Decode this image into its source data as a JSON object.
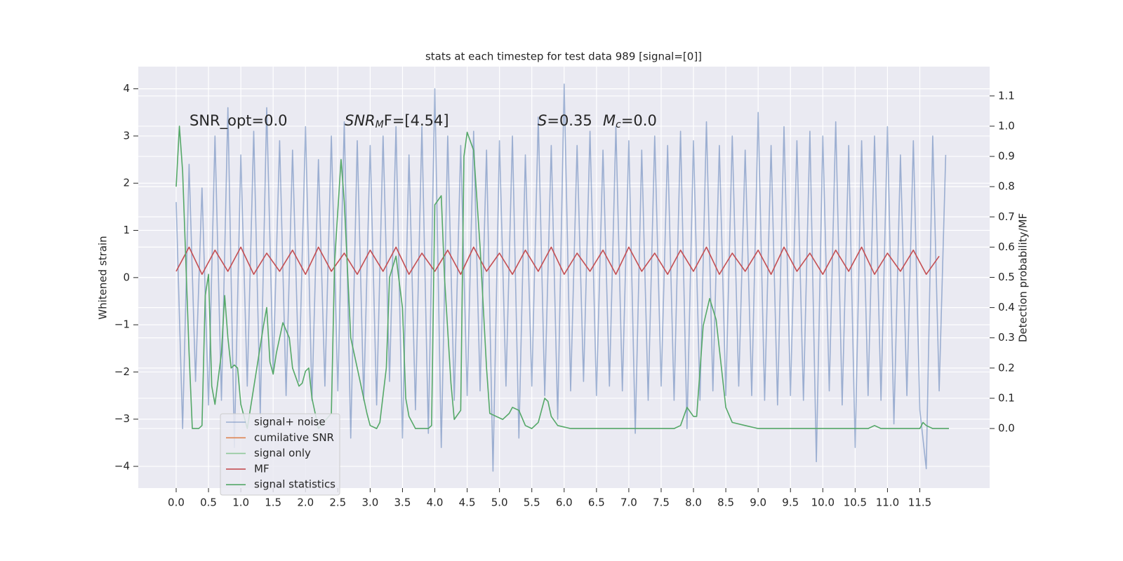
{
  "chart_data": {
    "type": "line",
    "title": "stats at each timestep for test data 989 [signal=[0]]",
    "ylabel": "Whitened strain",
    "y2label": "Detection probability/MF",
    "grid": true,
    "legend": "lower left",
    "background": "#eaeaf2",
    "annotations": [
      {
        "text": "SNR_opt=0.0"
      },
      {
        "italic": "SNR",
        "sub": "M",
        "text": "F=[4.54]"
      },
      {
        "italic": "S",
        "text": "=0.35"
      },
      {
        "italic": "M",
        "sub": "c",
        "text": "=0.0"
      }
    ],
    "xlim": [
      -0.586,
      12.58
    ],
    "ylim": [
      -4.46,
      4.47
    ],
    "y2lim": [
      -0.197,
      1.197
    ],
    "xticks": [
      {
        "value": 0,
        "label": "0.0"
      },
      {
        "value": 0.5,
        "label": "0.5"
      },
      {
        "value": 1,
        "label": "1.0"
      },
      {
        "value": 1.5,
        "label": "1.5"
      },
      {
        "value": 2,
        "label": "2.0"
      },
      {
        "value": 2.5,
        "label": "2.5"
      },
      {
        "value": 3,
        "label": "3.0"
      },
      {
        "value": 3.5,
        "label": "3.5"
      },
      {
        "value": 4,
        "label": "4.0"
      },
      {
        "value": 4.5,
        "label": "4.5"
      },
      {
        "value": 5,
        "label": "5.0"
      },
      {
        "value": 5.5,
        "label": "5.5"
      },
      {
        "value": 6,
        "label": "6.0"
      },
      {
        "value": 6.5,
        "label": "6.5"
      },
      {
        "value": 7,
        "label": "7.0"
      },
      {
        "value": 7.5,
        "label": "7.5"
      },
      {
        "value": 8,
        "label": "8.0"
      },
      {
        "value": 8.5,
        "label": "8.5"
      },
      {
        "value": 9,
        "label": "9.0"
      },
      {
        "value": 9.5,
        "label": "9.5"
      },
      {
        "value": 10,
        "label": "10.0"
      },
      {
        "value": 10.5,
        "label": "10.5"
      },
      {
        "value": 11,
        "label": "11.0"
      },
      {
        "value": 11.5,
        "label": "11.5"
      }
    ],
    "yticks": [
      {
        "value": -4,
        "label": "−4"
      },
      {
        "value": -3,
        "label": "−3"
      },
      {
        "value": -2,
        "label": "−2"
      },
      {
        "value": -1,
        "label": "−1"
      },
      0,
      1,
      2,
      3,
      4
    ],
    "y2ticks": [
      {
        "value": 0,
        "label": "0.0"
      },
      {
        "value": 0.1,
        "label": "0.1"
      },
      {
        "value": 0.2,
        "label": "0.2"
      },
      {
        "value": 0.3,
        "label": "0.3"
      },
      {
        "value": 0.4,
        "label": "0.4"
      },
      {
        "value": 0.5,
        "label": "0.5"
      },
      {
        "value": 0.6,
        "label": "0.6"
      },
      {
        "value": 0.7,
        "label": "0.7"
      },
      {
        "value": 0.8,
        "label": "0.8"
      },
      {
        "value": 0.9,
        "label": "0.9"
      },
      {
        "value": 1,
        "label": "1.0"
      },
      {
        "value": 1.1,
        "label": "1.1"
      }
    ],
    "series": [
      {
        "name": "signal+ noise",
        "color": "#4c72b0",
        "opacity": 0.5,
        "x": [
          0,
          0.1,
          0.2,
          0.3,
          0.4,
          0.5,
          0.6,
          0.7,
          0.8,
          0.9,
          1,
          1.1,
          1.2,
          1.3,
          1.4,
          1.5,
          1.6,
          1.7,
          1.8,
          1.9,
          2,
          2.1,
          2.2,
          2.3,
          2.4,
          2.5,
          2.6,
          2.7,
          2.8,
          2.9,
          3,
          3.1,
          3.2,
          3.3,
          3.4,
          3.5,
          3.6,
          3.7,
          3.8,
          3.9,
          4,
          4.1,
          4.2,
          4.3,
          4.4,
          4.5,
          4.6,
          4.7,
          4.8,
          4.9,
          5,
          5.1,
          5.2,
          5.3,
          5.4,
          5.5,
          5.6,
          5.7,
          5.8,
          5.9,
          6,
          6.1,
          6.2,
          6.3,
          6.4,
          6.5,
          6.6,
          6.7,
          6.8,
          6.9,
          7,
          7.1,
          7.2,
          7.3,
          7.4,
          7.5,
          7.6,
          7.7,
          7.8,
          7.9,
          8,
          8.1,
          8.2,
          8.3,
          8.4,
          8.5,
          8.6,
          8.7,
          8.8,
          8.9,
          9,
          9.1,
          9.2,
          9.3,
          9.4,
          9.5,
          9.6,
          9.7,
          9.8,
          9.9,
          10,
          10.1,
          10.2,
          10.3,
          10.4,
          10.5,
          10.6,
          10.7,
          10.8,
          10.9,
          11,
          11.1,
          11.2,
          11.3,
          11.4,
          11.5,
          11.6,
          11.7,
          11.8,
          11.9
        ],
        "values": [
          1.6,
          -3.2,
          2.4,
          -2.2,
          1.9,
          -2.7,
          3.0,
          -2.6,
          3.6,
          -3.6,
          2.6,
          -2.3,
          3.1,
          -2.9,
          3.6,
          -2.0,
          2.9,
          -2.5,
          2.7,
          -2.2,
          3.2,
          -2.6,
          2.5,
          -2.3,
          3.0,
          -2.4,
          3.3,
          -3.4,
          2.9,
          -2.6,
          2.8,
          -2.7,
          3.0,
          -2.2,
          3.2,
          -3.4,
          2.6,
          -2.8,
          3.2,
          -3.3,
          4.0,
          -3.6,
          3.0,
          -2.6,
          2.8,
          -2.5,
          3.1,
          -2.4,
          2.7,
          -4.1,
          2.9,
          -2.3,
          3.0,
          -3.4,
          2.6,
          -2.3,
          3.4,
          -2.5,
          2.8,
          -3.0,
          4.1,
          -2.4,
          2.8,
          -2.2,
          3.1,
          -2.5,
          2.7,
          -2.3,
          3.2,
          -2.4,
          2.9,
          -3.3,
          2.7,
          -2.6,
          3.0,
          -2.3,
          2.8,
          -2.6,
          3.1,
          -3.2,
          2.9,
          -2.6,
          3.3,
          -2.4,
          2.8,
          -2.5,
          3.0,
          -2.3,
          2.7,
          -2.5,
          3.5,
          -2.6,
          2.8,
          -2.7,
          3.2,
          -2.5,
          2.9,
          -2.6,
          3.1,
          -3.9,
          3.0,
          -2.4,
          3.3,
          -2.7,
          2.8,
          -3.6,
          2.9,
          -2.5,
          3.0,
          -2.6,
          3.2,
          -3.1,
          2.6,
          -2.5,
          2.9,
          -2.8,
          -4.05,
          3.0,
          -2.4,
          2.6
        ]
      },
      {
        "name": "cumilative SNR",
        "color": "#dd8452",
        "x": [],
        "values": []
      },
      {
        "name": "signal only",
        "color": "#8fc79a",
        "x": [],
        "values": []
      },
      {
        "name": "MF",
        "color": "#c44e52",
        "axis": "y2",
        "x": [
          0,
          0.2,
          0.4,
          0.6,
          0.8,
          1,
          1.2,
          1.4,
          1.6,
          1.8,
          2,
          2.2,
          2.4,
          2.6,
          2.8,
          3,
          3.2,
          3.4,
          3.6,
          3.8,
          4,
          4.2,
          4.4,
          4.6,
          4.8,
          5,
          5.2,
          5.4,
          5.6,
          5.8,
          6,
          6.2,
          6.4,
          6.6,
          6.8,
          7,
          7.2,
          7.4,
          7.6,
          7.8,
          8,
          8.2,
          8.4,
          8.6,
          8.8,
          9,
          9.2,
          9.4,
          9.6,
          9.8,
          10,
          10.2,
          10.4,
          10.6,
          10.8,
          11,
          11.2,
          11.4,
          11.6,
          11.8
        ],
        "values": [
          0.52,
          0.6,
          0.51,
          0.59,
          0.52,
          0.6,
          0.51,
          0.58,
          0.52,
          0.59,
          0.51,
          0.6,
          0.52,
          0.58,
          0.51,
          0.59,
          0.52,
          0.6,
          0.51,
          0.58,
          0.52,
          0.59,
          0.51,
          0.6,
          0.52,
          0.58,
          0.51,
          0.59,
          0.52,
          0.6,
          0.51,
          0.58,
          0.52,
          0.59,
          0.51,
          0.6,
          0.52,
          0.58,
          0.51,
          0.59,
          0.52,
          0.6,
          0.51,
          0.58,
          0.52,
          0.59,
          0.51,
          0.6,
          0.52,
          0.58,
          0.51,
          0.59,
          0.52,
          0.6,
          0.51,
          0.58,
          0.52,
          0.59,
          0.51,
          0.57
        ]
      },
      {
        "name": "signal statistics",
        "color": "#55a868",
        "axis": "y2",
        "x": [
          0,
          0.05,
          0.1,
          0.2,
          0.25,
          0.3,
          0.35,
          0.4,
          0.45,
          0.5,
          0.55,
          0.6,
          0.7,
          0.75,
          0.8,
          0.85,
          0.9,
          0.95,
          1.0,
          1.1,
          1.35,
          1.4,
          1.45,
          1.5,
          1.55,
          1.65,
          1.75,
          1.8,
          1.9,
          1.95,
          2.0,
          2.05,
          2.1,
          2.2,
          2.4,
          2.45,
          2.55,
          2.6,
          2.7,
          2.8,
          2.9,
          2.95,
          3.0,
          3.1,
          3.15,
          3.25,
          3.3,
          3.4,
          3.5,
          3.55,
          3.6,
          3.7,
          3.8,
          3.9,
          3.95,
          4.0,
          4.1,
          4.15,
          4.25,
          4.3,
          4.4,
          4.45,
          4.5,
          4.6,
          4.7,
          4.8,
          4.85,
          4.95,
          5.05,
          5.15,
          5.2,
          5.3,
          5.4,
          5.5,
          5.6,
          5.7,
          5.75,
          5.8,
          5.9,
          6.1,
          7.0,
          7.7,
          7.8,
          7.9,
          8.0,
          8.05,
          8.15,
          8.25,
          8.35,
          8.5,
          8.6,
          8.8,
          9.0,
          9.5,
          10.0,
          10.5,
          10.7,
          10.8,
          10.9,
          11.5,
          11.55,
          11.6,
          11.7,
          11.95
        ],
        "values": [
          0.8,
          1.0,
          0.85,
          0.25,
          0.0,
          0.0,
          0.0,
          0.01,
          0.44,
          0.51,
          0.14,
          0.08,
          0.25,
          0.44,
          0.3,
          0.2,
          0.21,
          0.2,
          0.08,
          0.0,
          0.34,
          0.4,
          0.22,
          0.18,
          0.25,
          0.35,
          0.3,
          0.2,
          0.14,
          0.15,
          0.19,
          0.2,
          0.1,
          0.0,
          0.05,
          0.55,
          0.89,
          0.75,
          0.3,
          0.2,
          0.1,
          0.05,
          0.01,
          0.0,
          0.02,
          0.2,
          0.5,
          0.57,
          0.4,
          0.1,
          0.04,
          0.0,
          0.0,
          0.0,
          0.01,
          0.74,
          0.77,
          0.5,
          0.15,
          0.03,
          0.06,
          0.9,
          0.98,
          0.92,
          0.6,
          0.2,
          0.05,
          0.04,
          0.03,
          0.05,
          0.07,
          0.06,
          0.01,
          0.0,
          0.02,
          0.1,
          0.09,
          0.04,
          0.01,
          0.0,
          0.0,
          0.0,
          0.01,
          0.07,
          0.04,
          0.04,
          0.34,
          0.43,
          0.36,
          0.07,
          0.02,
          0.01,
          0.0,
          0.0,
          0.0,
          0.0,
          0.0,
          0.01,
          0.0,
          0.0,
          0.02,
          0.01,
          0.0,
          0.0
        ]
      }
    ]
  }
}
